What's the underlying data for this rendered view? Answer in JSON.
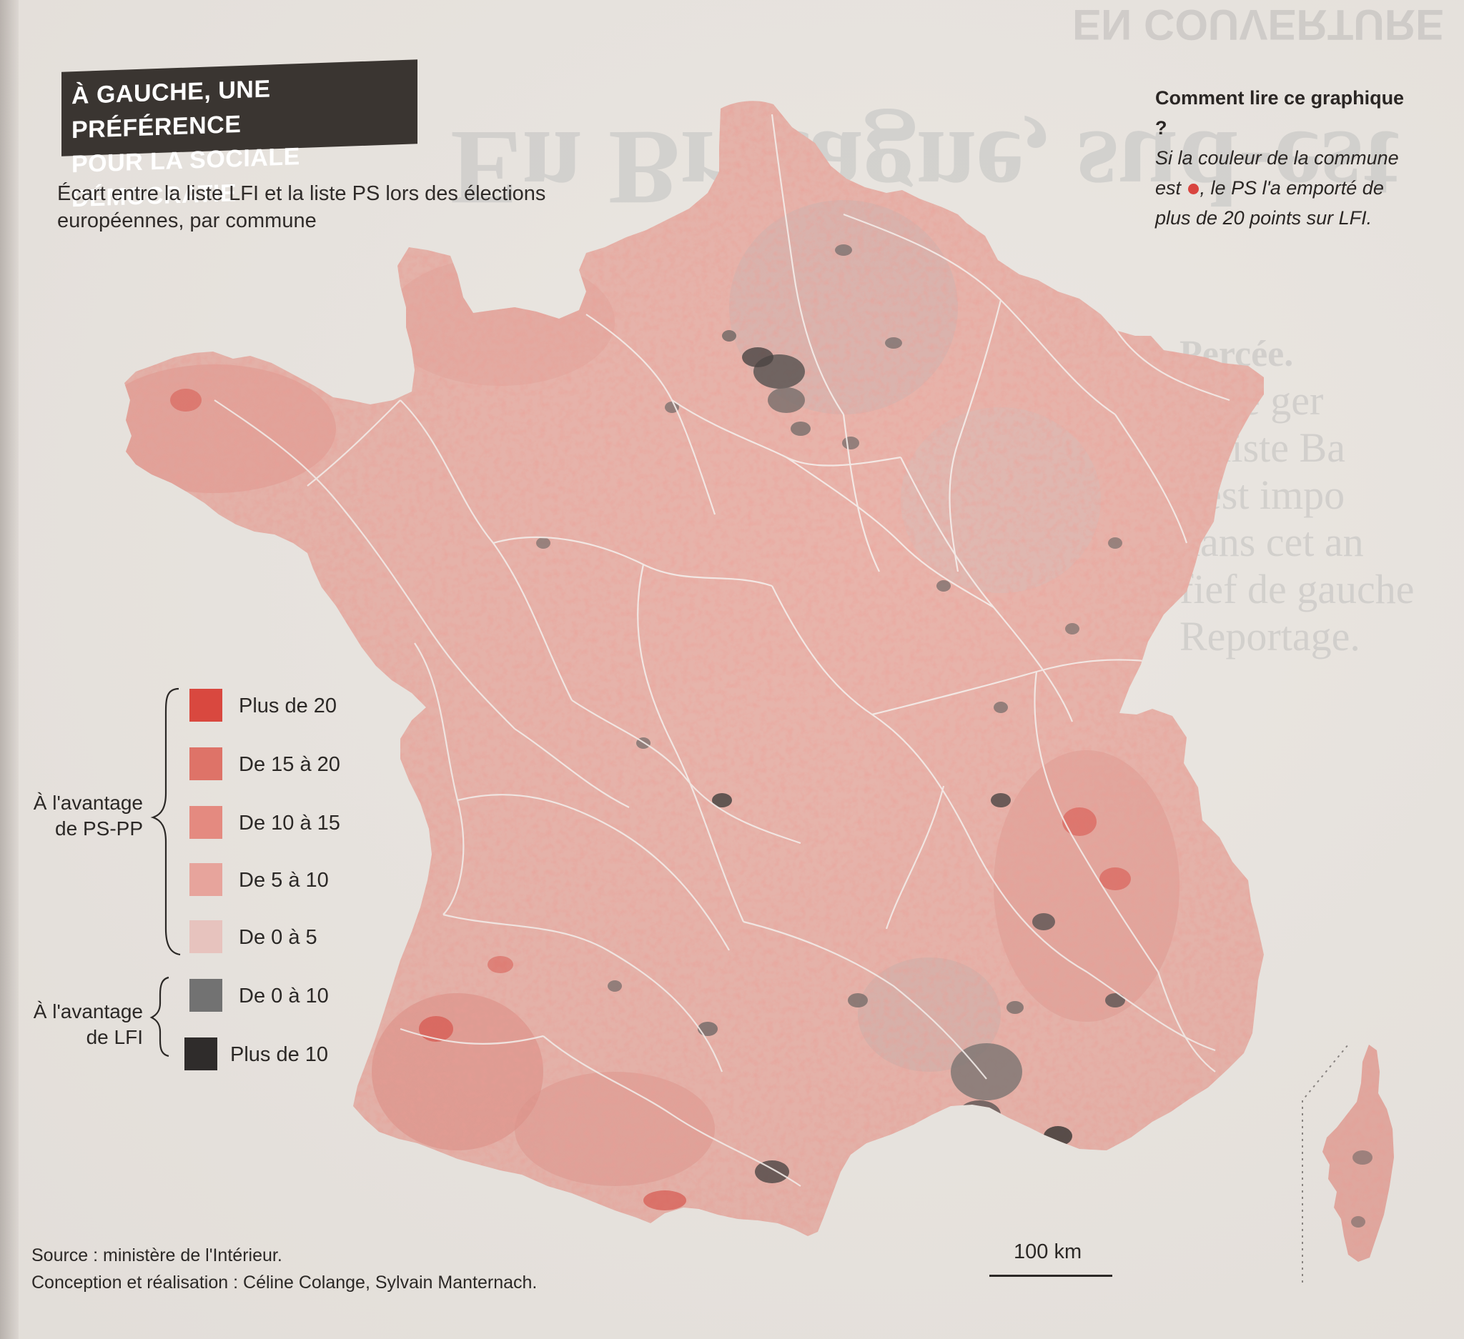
{
  "title": {
    "line1": "À GAUCHE, UNE PRÉFÉRENCE",
    "line2": "POUR LA SOCIALE DÉMOCRATIE"
  },
  "subtitle": "Écart entre la liste LFI et la liste PS lors des élections européennes, par commune",
  "how_to_read": {
    "title": "Comment lire ce graphique ?",
    "body_before": "Si la couleur de la commune est",
    "body_after": ", le PS l'a emporté de plus de 20 points sur LFI."
  },
  "legend": {
    "group_ps": "À l'avantage de PS-PP",
    "group_lfi": "À l'avantage de LFI",
    "items": [
      {
        "label": "Plus de 20",
        "color": "#d9483f",
        "group": "PS-PP"
      },
      {
        "label": "De 15 à 20",
        "color": "#de7368",
        "group": "PS-PP"
      },
      {
        "label": "De 10 à 15",
        "color": "#e48a80",
        "group": "PS-PP"
      },
      {
        "label": "De 5 à 10",
        "color": "#e7a49c",
        "group": "PS-PP"
      },
      {
        "label": "De 0 à 5",
        "color": "#e7c3be",
        "group": "PS-PP"
      },
      {
        "label": "De 0 à 10",
        "color": "#727272",
        "group": "LFI"
      },
      {
        "label": "Plus de 10",
        "color": "#2f2c2b",
        "group": "LFI"
      }
    ]
  },
  "source": {
    "line1": "Source : ministère de l'Intérieur.",
    "line2": "Conception et réalisation : Céline Colange, Sylvain Manternach."
  },
  "scale": {
    "label": "100 km"
  },
  "background_article": {
    "kicker": "EN COUVERTURE",
    "headline_fragment": "En Bretagne, sud-est",
    "side_snippets": [
      "Percée.",
      "prise ger",
      "la liste Ba",
      "s'est impo",
      "dans cet an",
      "fief de gauche",
      "Reportage."
    ]
  },
  "colors": {
    "map_base": "#e7b3aa",
    "map_border": "#f4eeeb",
    "title_bg": "#3a3531"
  }
}
